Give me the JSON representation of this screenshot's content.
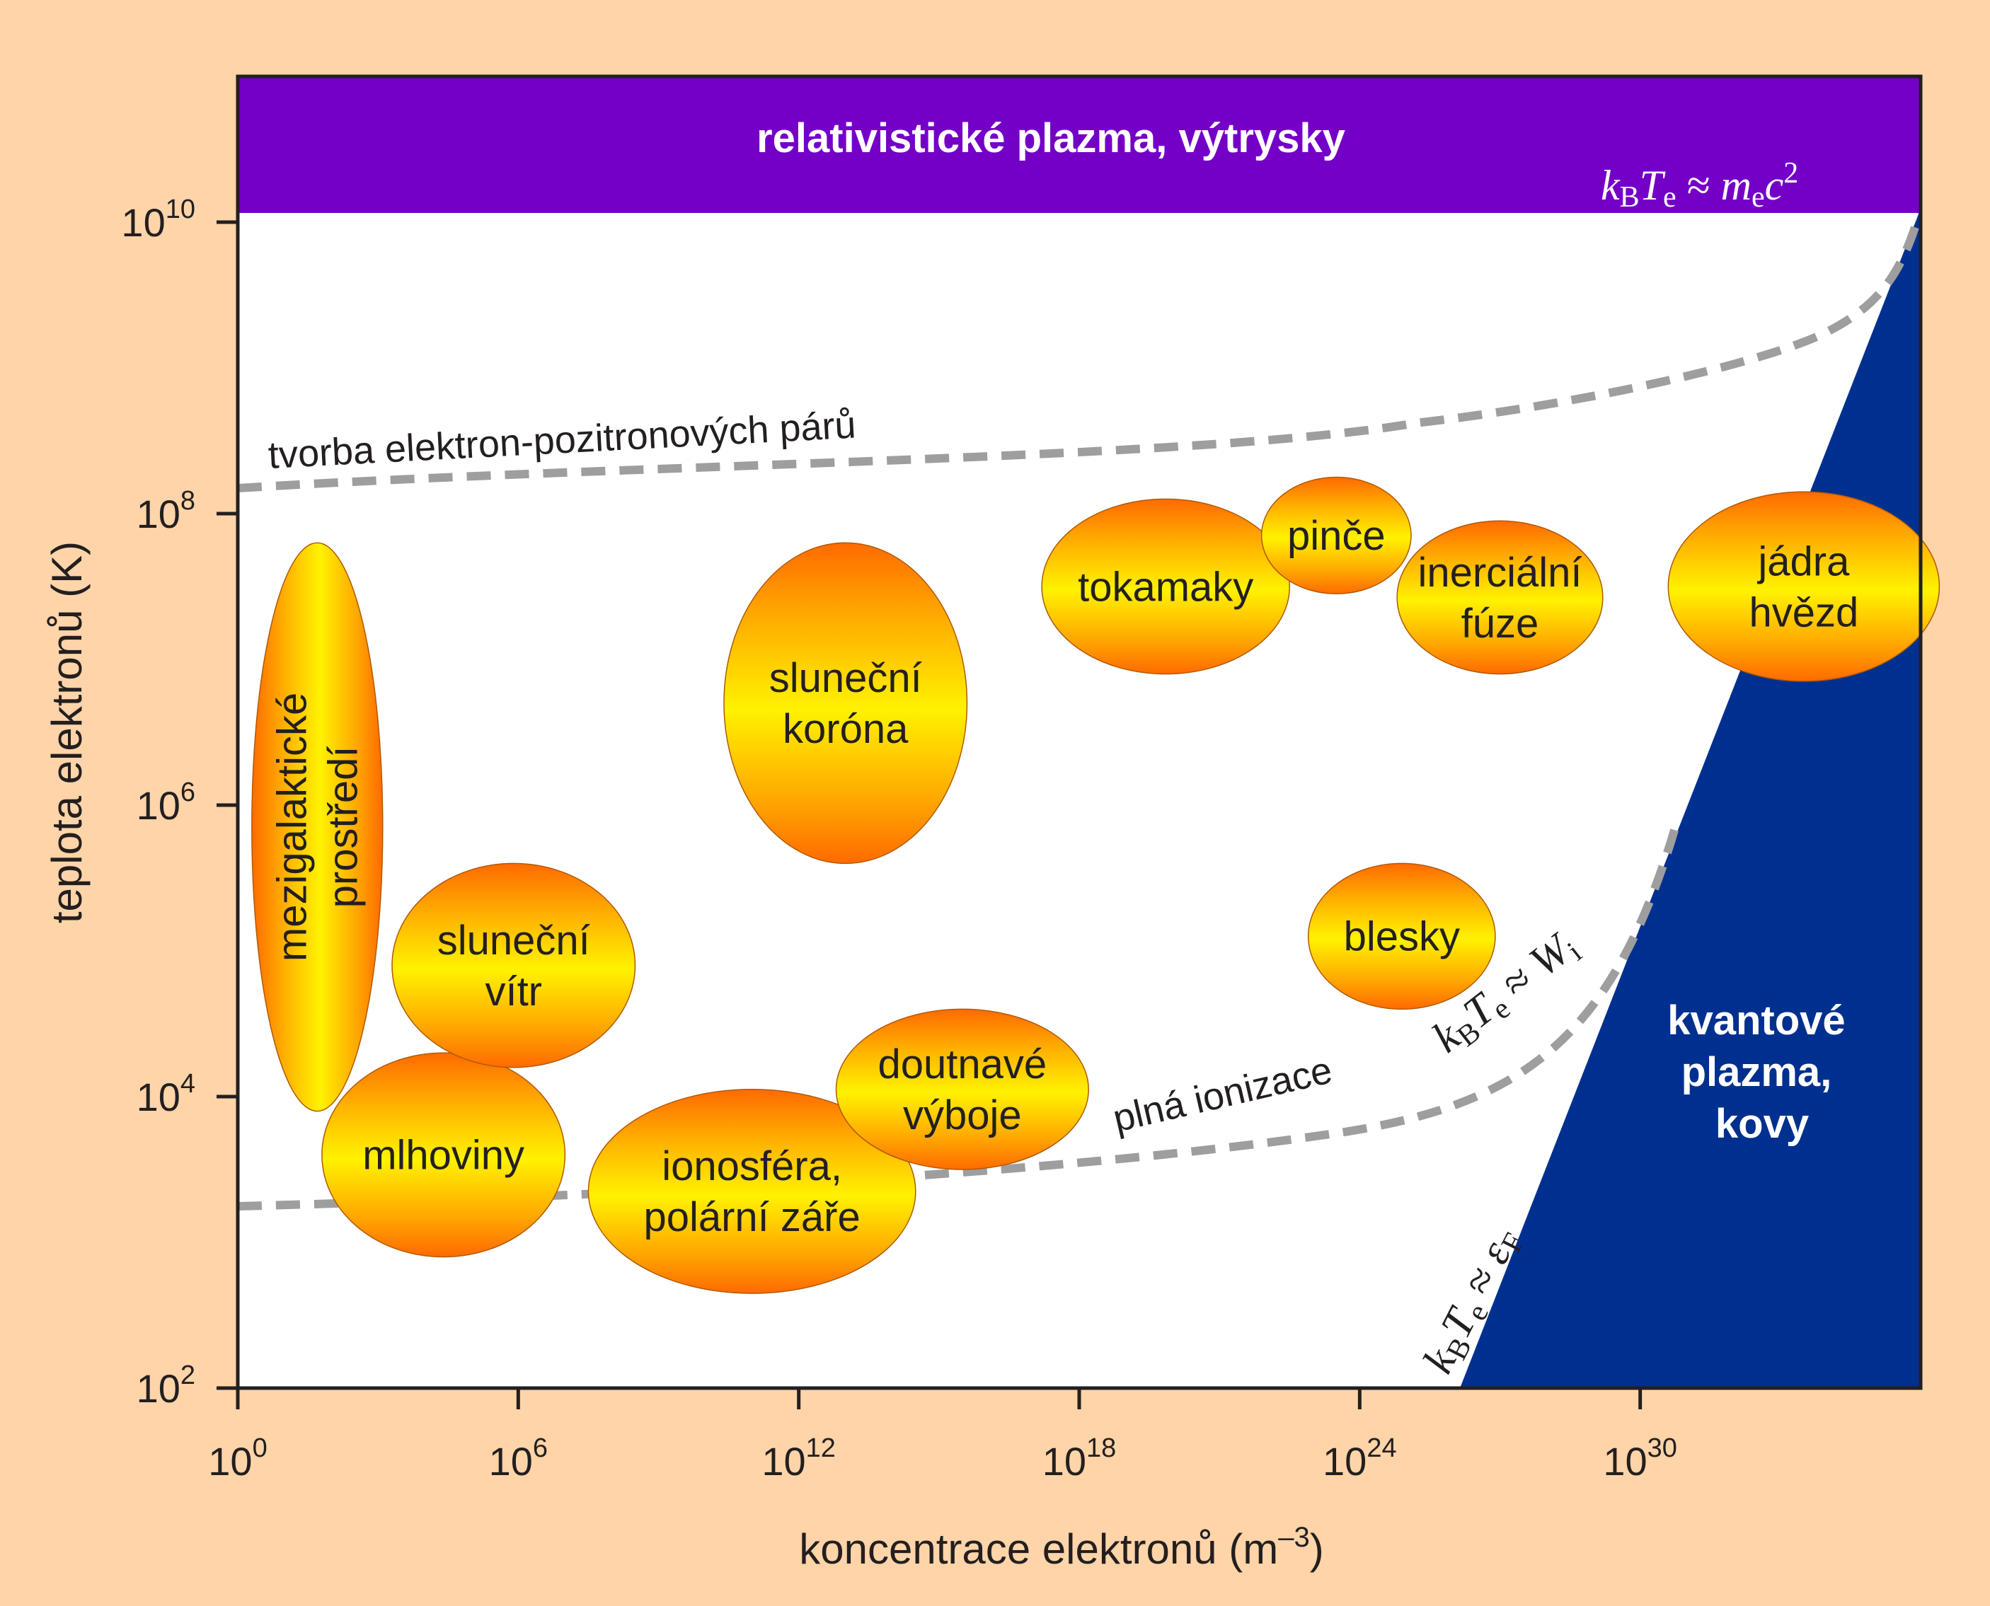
{
  "chart_data": {
    "type": "scatter",
    "xlabel": "koncentrace elektronů (m",
    "xlabel_sup": "–3",
    "xlabel_end": ")",
    "ylabel": "teplota elektronů (K)",
    "x_scale": "log",
    "y_scale": "log",
    "xlim": [
      1,
      1e+36
    ],
    "ylim": [
      100,
      100000000000.0
    ],
    "x_ticks": [
      {
        "value": 1,
        "base": "10",
        "exp": "0"
      },
      {
        "value": 1000000.0,
        "base": "10",
        "exp": "6"
      },
      {
        "value": 1000000000000.0,
        "base": "10",
        "exp": "12"
      },
      {
        "value": 1e+18,
        "base": "10",
        "exp": "18"
      },
      {
        "value": 1e+24,
        "base": "10",
        "exp": "24"
      },
      {
        "value": 1e+30,
        "base": "10",
        "exp": "30"
      }
    ],
    "y_ticks": [
      {
        "value": 100,
        "base": "10",
        "exp": "2"
      },
      {
        "value": 10000.0,
        "base": "10",
        "exp": "4"
      },
      {
        "value": 1000000.0,
        "base": "10",
        "exp": "6"
      },
      {
        "value": 100000000.0,
        "base": "10",
        "exp": "8"
      },
      {
        "value": 10000000000.0,
        "base": "10",
        "exp": "10"
      }
    ],
    "regions": {
      "relativistic": {
        "label": "relativistické plazma, výtrysky",
        "y_min": 10000000000.0,
        "color": "#7400C8"
      },
      "quantum": {
        "lines": [
          "kvantové",
          "plazma,",
          "kovy"
        ],
        "color": "#00308F"
      }
    },
    "boundaries": {
      "pair_production": {
        "label": "tvorba elektron-pozitronových párů"
      },
      "full_ionization": {
        "label": "plná ionizace"
      },
      "relativistic_formula": "k_B T_e ≈ m_e c^2",
      "ionization_formula": "k_B T_e ≈ W_i",
      "fermi_formula": "k_B T_e ≈ ε_F"
    },
    "series": [
      {
        "lines": [
          "mezigalaktické",
          "prostředí"
        ],
        "log_n": [
          0.3,
          3.1
        ],
        "log_T": [
          3.9,
          7.8
        ],
        "vertical": true
      },
      {
        "lines": [
          "mlhoviny"
        ],
        "log_n": [
          1.8,
          7.0
        ],
        "log_T": [
          2.9,
          4.3
        ]
      },
      {
        "lines": [
          "sluneční",
          "vítr"
        ],
        "log_n": [
          3.3,
          8.5
        ],
        "log_T": [
          4.2,
          5.6
        ]
      },
      {
        "lines": [
          "ionosféra,",
          "polární záře"
        ],
        "log_n": [
          7.5,
          14.5
        ],
        "log_T": [
          2.65,
          4.05
        ]
      },
      {
        "lines": [
          "sluneční",
          "koróna"
        ],
        "log_n": [
          10.4,
          15.6
        ],
        "log_T": [
          5.6,
          7.8
        ]
      },
      {
        "lines": [
          "doutnavé",
          "výboje"
        ],
        "log_n": [
          12.8,
          18.2
        ],
        "log_T": [
          3.5,
          4.6
        ]
      },
      {
        "lines": [
          "blesky"
        ],
        "log_n": [
          22.9,
          26.9
        ],
        "log_T": [
          4.6,
          5.6
        ]
      },
      {
        "lines": [
          "tokamaky"
        ],
        "log_n": [
          17.2,
          22.5
        ],
        "log_T": [
          6.9,
          8.1
        ]
      },
      {
        "lines": [
          "pinče"
        ],
        "log_n": [
          21.9,
          25.1
        ],
        "log_T": [
          7.45,
          8.25
        ]
      },
      {
        "lines": [
          "inerciální",
          "fúze"
        ],
        "log_n": [
          24.8,
          29.2
        ],
        "log_T": [
          6.9,
          7.95
        ]
      },
      {
        "lines": [
          "jádra",
          "hvězd"
        ],
        "log_n": [
          30.6,
          36.4
        ],
        "log_T": [
          6.85,
          8.15
        ]
      }
    ]
  }
}
